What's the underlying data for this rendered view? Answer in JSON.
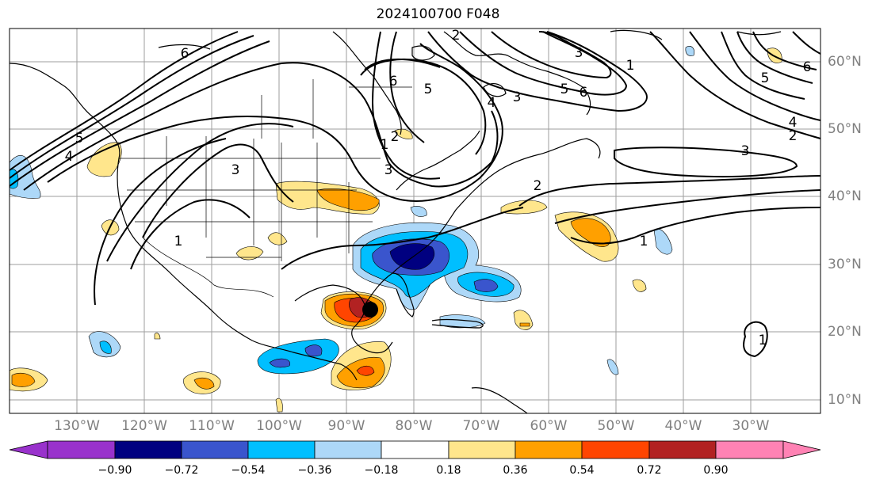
{
  "title": "2024100700 F048",
  "longitude_labels": [
    "130°W",
    "120°W",
    "110°W",
    "100°W",
    "90°W",
    "80°W",
    "70°W",
    "60°W",
    "50°W",
    "40°W",
    "30°W"
  ],
  "latitude_labels": [
    "60°N",
    "50°N",
    "40°N",
    "30°N",
    "20°N",
    "10°N"
  ],
  "colorbar": {
    "ticks": [
      "−0.90",
      "−0.72",
      "−0.54",
      "−0.36",
      "−0.18",
      "0.18",
      "0.36",
      "0.54",
      "0.72",
      "0.90"
    ],
    "colors": [
      "#9932cc",
      "#000080",
      "#3a55cd",
      "#00bfff",
      "#add8f8",
      "#ffffff",
      "#ffe68c",
      "#ffa000",
      "#ff4500",
      "#b22222",
      "#ff82b4"
    ]
  },
  "contour_labels": [
    "6",
    "5",
    "4",
    "3",
    "2",
    "1",
    "6",
    "5",
    "4",
    "3",
    "3",
    "2",
    "1",
    "6",
    "5",
    "4",
    "3",
    "2",
    "1",
    "3",
    "2",
    "1",
    "1",
    "5",
    "6"
  ],
  "storm_marker": "hurricane-center"
}
